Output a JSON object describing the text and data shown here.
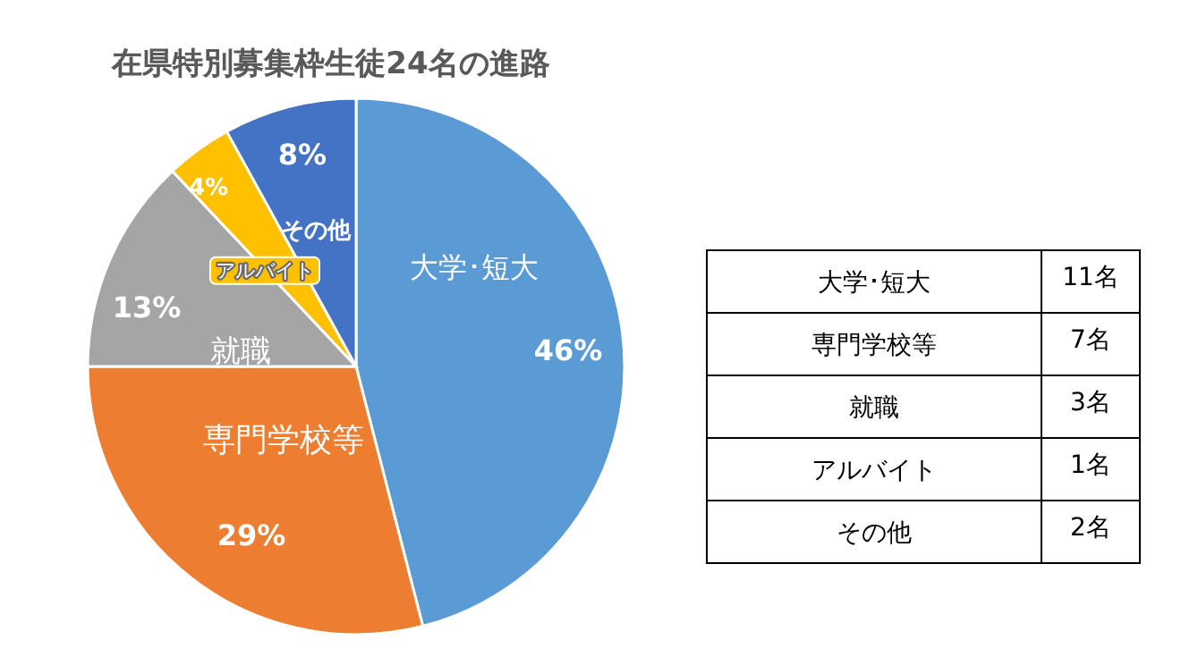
{
  "chart_data": [
    {
      "type": "pie",
      "title": "在県特別募集枠生徒24名の進路",
      "categories": [
        "大学･短大",
        "専門学校等",
        "就職",
        "アルバイト",
        "その他"
      ],
      "values": [
        46,
        29,
        13,
        4,
        8
      ],
      "value_labels": [
        "46%",
        "29%",
        "13%",
        "4%",
        "8%"
      ],
      "colors": [
        "#5b9bd5",
        "#ed7d31",
        "#a5a5a5",
        "#ffc000",
        "#4472c4"
      ]
    },
    {
      "type": "other",
      "categories": [
        "大学･短大",
        "専門学校等",
        "就職",
        "アルバイト",
        "その他"
      ],
      "values": [
        11,
        7,
        3,
        1,
        2
      ],
      "value_labels": [
        "11名",
        "7名",
        "3名",
        "1名",
        "2名"
      ]
    }
  ]
}
